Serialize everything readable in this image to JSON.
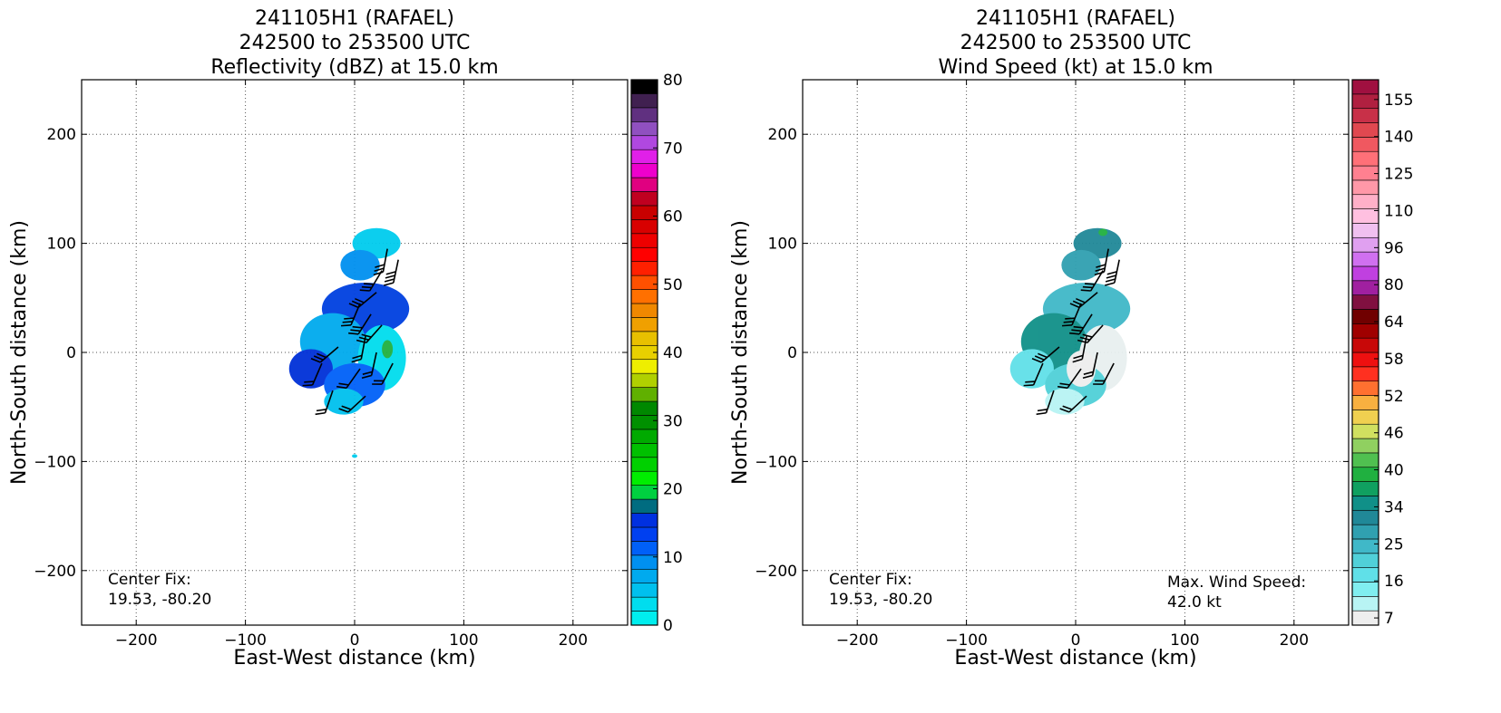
{
  "chart_data": [
    {
      "type": "heatmap",
      "title_lines": [
        "241105H1 (RAFAEL)",
        "242500 to 253500 UTC",
        "Reflectivity (dBZ) at 15.0 km"
      ],
      "xlabel": "East-West distance (km)",
      "ylabel": "North-South distance (km)",
      "xlim": [
        -250,
        250
      ],
      "ylim": [
        -250,
        250
      ],
      "xticks": [
        -200,
        -100,
        0,
        100,
        200
      ],
      "yticks": [
        -200,
        -100,
        0,
        100,
        200
      ],
      "grid": true,
      "annotations": [
        {
          "lines": [
            "Center Fix:",
            "19.53, -80.20"
          ],
          "position": "bottom-left"
        }
      ],
      "colorbar": {
        "min": 0,
        "max": 80,
        "tick_labels": [
          0,
          10,
          20,
          30,
          40,
          50,
          60,
          70,
          80
        ],
        "colors": [
          "#00eeee",
          "#00ddee",
          "#00c0ee",
          "#00aaee",
          "#0090f0",
          "#0060f8",
          "#0040f0",
          "#0030e0",
          "#006c80",
          "#00d040",
          "#00ee00",
          "#00d000",
          "#00c000",
          "#00aa00",
          "#009000",
          "#008800",
          "#60b000",
          "#b0d000",
          "#eeee00",
          "#e8d000",
          "#e8c000",
          "#f0a000",
          "#f08800",
          "#ff7000",
          "#ff5000",
          "#ff2000",
          "#ff0000",
          "#ee0000",
          "#d80000",
          "#c80000",
          "#c00020",
          "#e00080",
          "#ee00cc",
          "#e020e8",
          "#b048e0",
          "#9050c0",
          "#603080",
          "#402050",
          "#000000"
        ]
      },
      "barb_units": "kt",
      "barbs_approx": [
        {
          "x": 30,
          "y": 95,
          "speed": 30
        },
        {
          "x": 40,
          "y": 85,
          "speed": 35
        },
        {
          "x": 25,
          "y": 75,
          "speed": 30
        },
        {
          "x": 20,
          "y": 55,
          "speed": 25
        },
        {
          "x": 5,
          "y": 45,
          "speed": 30
        },
        {
          "x": 15,
          "y": 35,
          "speed": 30
        },
        {
          "x": 25,
          "y": 25,
          "speed": 25
        },
        {
          "x": 10,
          "y": 15,
          "speed": 20
        },
        {
          "x": -15,
          "y": 5,
          "speed": 25
        },
        {
          "x": 20,
          "y": 0,
          "speed": 20
        },
        {
          "x": -30,
          "y": -10,
          "speed": 20
        },
        {
          "x": 5,
          "y": -15,
          "speed": 15
        },
        {
          "x": 35,
          "y": -10,
          "speed": 15
        },
        {
          "x": -20,
          "y": -35,
          "speed": 20
        },
        {
          "x": 10,
          "y": -40,
          "speed": 15
        }
      ]
    },
    {
      "type": "heatmap",
      "title_lines": [
        "241105H1 (RAFAEL)",
        "242500 to 253500 UTC",
        "Wind Speed (kt) at 15.0 km"
      ],
      "xlabel": "East-West distance (km)",
      "ylabel": "North-South distance (km)",
      "xlim": [
        -250,
        250
      ],
      "ylim": [
        -250,
        250
      ],
      "xticks": [
        -200,
        -100,
        0,
        100,
        200
      ],
      "yticks": [
        -200,
        -100,
        0,
        100,
        200
      ],
      "grid": true,
      "annotations": [
        {
          "lines": [
            "Center Fix:",
            "19.53, -80.20"
          ],
          "position": "bottom-left"
        },
        {
          "lines": [
            "Max. Wind Speed:",
            "42.0 kt"
          ],
          "position": "bottom-right"
        }
      ],
      "colorbar": {
        "tick_labels": [
          "7",
          "16",
          "25",
          "34",
          "40",
          "46",
          "52",
          "58",
          "64",
          "80",
          "96",
          "110",
          "125",
          "140",
          "155"
        ],
        "colors": [
          "#eeeeee",
          "#b8f4f4",
          "#80eef0",
          "#60e0e8",
          "#50d0d8",
          "#40b8c8",
          "#30a0b0",
          "#208898",
          "#109088",
          "#10a060",
          "#20b040",
          "#50c050",
          "#90d060",
          "#d0e060",
          "#f0d050",
          "#f8b040",
          "#ff7030",
          "#ff3020",
          "#ee1010",
          "#c80808",
          "#a00000",
          "#700000",
          "#801040",
          "#a020a0",
          "#c040e0",
          "#d070f0",
          "#e0a0f0",
          "#f0c0f0",
          "#ffc0e0",
          "#ffb0c8",
          "#ff98a8",
          "#ff8090",
          "#ff7078",
          "#f05860",
          "#e04850",
          "#c83048",
          "#b02040",
          "#a01040"
        ]
      },
      "barb_units": "kt",
      "barbs_approx": [
        {
          "x": 30,
          "y": 95,
          "speed": 30
        },
        {
          "x": 40,
          "y": 85,
          "speed": 35
        },
        {
          "x": 25,
          "y": 75,
          "speed": 30
        },
        {
          "x": 20,
          "y": 55,
          "speed": 25
        },
        {
          "x": 5,
          "y": 45,
          "speed": 30
        },
        {
          "x": 15,
          "y": 35,
          "speed": 30
        },
        {
          "x": 25,
          "y": 25,
          "speed": 25
        },
        {
          "x": 10,
          "y": 15,
          "speed": 20
        },
        {
          "x": -15,
          "y": 5,
          "speed": 25
        },
        {
          "x": 20,
          "y": 0,
          "speed": 20
        },
        {
          "x": -30,
          "y": -10,
          "speed": 20
        },
        {
          "x": 5,
          "y": -15,
          "speed": 15
        },
        {
          "x": 35,
          "y": -10,
          "speed": 15
        },
        {
          "x": -20,
          "y": -35,
          "speed": 20
        },
        {
          "x": 10,
          "y": -40,
          "speed": 15
        }
      ]
    }
  ]
}
